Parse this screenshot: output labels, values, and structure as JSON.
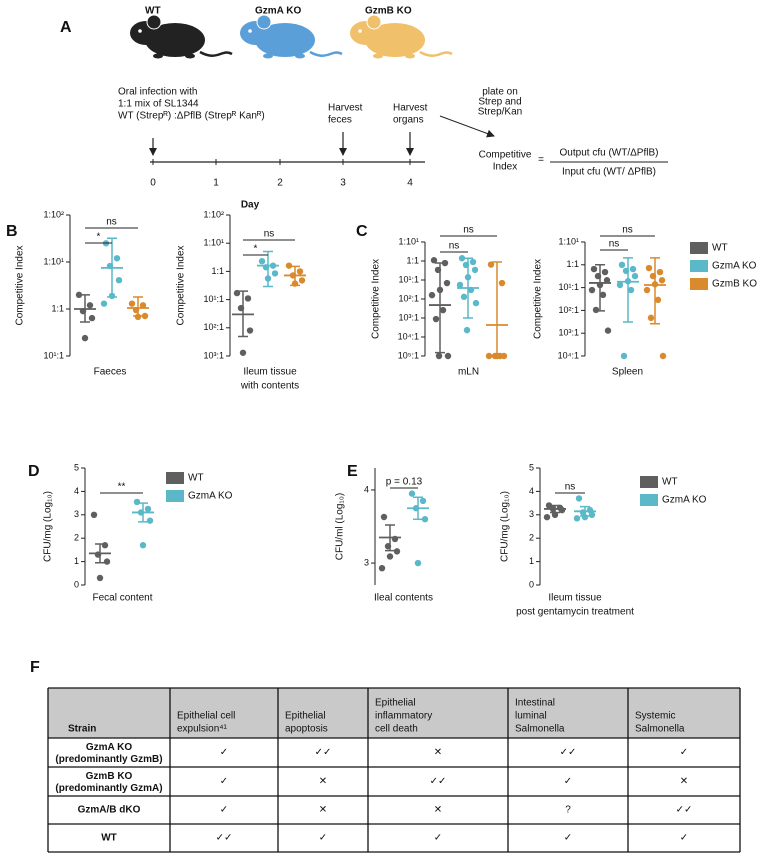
{
  "panel_labels": [
    "A",
    "B",
    "C",
    "D",
    "E",
    "F"
  ],
  "panel_a": {
    "mice": [
      {
        "label": "WT",
        "color": "#222222"
      },
      {
        "label": "GzmA KO",
        "color": "#5a9fd8"
      },
      {
        "label": "GzmB KO",
        "color": "#f0c06a"
      }
    ],
    "infection_text": [
      "Oral infection with",
      "1:1 mix of SL1344",
      "WT (Strepᴿ) :ΔPflB (Strepᴿ Kanᴿ)"
    ],
    "harvest_feces": [
      "Harvest",
      "feces"
    ],
    "harvest_organs": [
      "Harvest",
      "organs"
    ],
    "plate_text": [
      "plate on",
      "Strep and",
      "Strep/Kan"
    ],
    "days": [
      0,
      1,
      2,
      3,
      4
    ],
    "day_label": "Day",
    "formula": {
      "lhs": [
        "Competitive",
        "Index"
      ],
      "eq": "=",
      "numerator": "Output cfu (WT/ΔPflB)",
      "denominator": "Input cfu (WT/ ΔPflB)"
    }
  },
  "chart_data": [
    {
      "type": "scatter",
      "log_y": true,
      "ylabel": "Competitive Index",
      "xlabel": [
        "Faeces"
      ],
      "ylim": [
        0.1,
        100
      ],
      "yticks": [
        {
          "value": 100,
          "label": "1:10²"
        },
        {
          "value": 10,
          "label": "1:10¹"
        },
        {
          "value": 1,
          "label": "1:1"
        },
        {
          "value": 0.1,
          "label": "10¹:1"
        }
      ],
      "series": [
        {
          "color": "#5f5f5f",
          "values": [
            2,
            1.2,
            0.9,
            0.64,
            0.24
          ],
          "mean": 1,
          "range": [
            0.53,
            2
          ]
        },
        {
          "color": "#5bb8c9",
          "values": [
            25,
            12,
            8.2,
            4.1,
            1.9,
            1.3
          ],
          "mean": 7.5,
          "range": [
            1.8,
            32
          ]
        },
        {
          "color": "#d98a2c",
          "values": [
            1.3,
            1.2,
            0.95,
            0.71,
            0.68
          ],
          "mean": 1.05,
          "range": [
            0.71,
            1.8
          ]
        }
      ],
      "annotations": [
        {
          "text": "ns",
          "compare": [
            0,
            2
          ]
        },
        {
          "text": "*",
          "compare": [
            0,
            1
          ]
        }
      ]
    },
    {
      "type": "scatter",
      "log_y": true,
      "ylabel": "Competitive Index",
      "xlabel": [
        "Ileum tissue",
        "with contents"
      ],
      "ylim": [
        0.001,
        100
      ],
      "yticks": [
        {
          "value": 100,
          "label": "1:10²"
        },
        {
          "value": 10,
          "label": "1:10¹"
        },
        {
          "value": 1,
          "label": "1:1"
        },
        {
          "value": 0.1,
          "label": "10¹:1"
        },
        {
          "value": 0.01,
          "label": "10²:1"
        },
        {
          "value": 0.001,
          "label": "10³:1"
        }
      ],
      "series": [
        {
          "color": "#5f5f5f",
          "values": [
            0.17,
            0.11,
            0.05,
            0.008,
            0.0013
          ],
          "mean": 0.03,
          "range": [
            0.0049,
            0.2
          ]
        },
        {
          "color": "#5bb8c9",
          "values": [
            2.3,
            1.6,
            1.4,
            0.85,
            0.56
          ],
          "mean": 1.6,
          "range": [
            0.29,
            5.1
          ]
        },
        {
          "color": "#d98a2c",
          "values": [
            1.6,
            1,
            0.72,
            0.48,
            0.37
          ],
          "mean": 0.72,
          "range": [
            0.32,
            1.5
          ]
        }
      ],
      "annotations": [
        {
          "text": "ns",
          "compare": [
            0,
            2
          ]
        },
        {
          "text": "*",
          "compare": [
            0,
            1
          ]
        }
      ]
    },
    {
      "type": "scatter",
      "log_y": true,
      "ylabel": "Competitive Index",
      "xlabel": [
        "mLN"
      ],
      "ylim": [
        1e-05,
        10
      ],
      "yticks": [
        {
          "value": 10,
          "label": "1:10¹"
        },
        {
          "value": 1,
          "label": "1:1"
        },
        {
          "value": 0.1,
          "label": "10¹:1"
        },
        {
          "value": 0.01,
          "label": "10²:1"
        },
        {
          "value": 0.001,
          "label": "10³:1"
        },
        {
          "value": 0.0001,
          "label": "10⁴:1"
        },
        {
          "value": 1e-05,
          "label": "10⁵:1"
        }
      ],
      "series": [
        {
          "color": "#5f5f5f",
          "values": [
            1.1,
            0.78,
            0.34,
            0.069,
            0.03,
            0.016,
            0.0026,
            0.00088,
            1e-05,
            1e-05
          ],
          "mean": 0.0048,
          "range": [
            1.5e-05,
            0.78
          ]
        },
        {
          "color": "#5bb8c9",
          "values": [
            1.4,
            0.89,
            0.62,
            0.34,
            0.14,
            0.055,
            0.03,
            0.013,
            0.0061,
            0.00023
          ],
          "mean": 0.038,
          "range": [
            0.001,
            1.4
          ]
        },
        {
          "color": "#d98a2c",
          "values": [
            0.65,
            0.069,
            1e-05,
            1e-05,
            1e-05,
            1e-05,
            1e-05
          ],
          "mean": 0.00043,
          "range": [
            1e-05,
            0.89
          ]
        }
      ],
      "annotations": [
        {
          "text": "ns",
          "compare": [
            0,
            2
          ]
        },
        {
          "text": "ns",
          "compare": [
            0,
            1
          ]
        }
      ]
    },
    {
      "type": "scatter",
      "log_y": true,
      "ylabel": "Competitive Index",
      "xlabel": [
        "Spleen"
      ],
      "ylim": [
        0.0001,
        10
      ],
      "yticks": [
        {
          "value": 10,
          "label": "1:10¹"
        },
        {
          "value": 1,
          "label": "1:1"
        },
        {
          "value": 0.1,
          "label": "10¹:1"
        },
        {
          "value": 0.01,
          "label": "10²:1"
        },
        {
          "value": 0.001,
          "label": "10³:1"
        },
        {
          "value": 0.0001,
          "label": "10⁴:1"
        }
      ],
      "series": [
        {
          "name": "WT",
          "color": "#5f5f5f",
          "values": [
            0.65,
            0.48,
            0.32,
            0.21,
            0.13,
            0.078,
            0.048,
            0.0105,
            0.0013
          ],
          "mean": 0.16,
          "range": [
            0.0095,
            1
          ]
        },
        {
          "name": "GzmA KO",
          "color": "#5bb8c9",
          "values": [
            1,
            0.65,
            0.54,
            0.32,
            0.19,
            0.13,
            0.078,
            0.0001
          ],
          "mean": 0.18,
          "range": [
            0.0031,
            2
          ]
        },
        {
          "name": "GzmB KO",
          "color": "#d98a2c",
          "values": [
            0.72,
            0.48,
            0.32,
            0.21,
            0.14,
            0.078,
            0.029,
            0.0047,
            0.0001
          ],
          "mean": 0.13,
          "range": [
            0.0026,
            2
          ]
        }
      ],
      "annotations": [
        {
          "text": "ns",
          "compare": [
            0,
            2
          ]
        },
        {
          "text": "ns",
          "compare": [
            0,
            1
          ]
        }
      ]
    },
    {
      "type": "scatter",
      "log_y": false,
      "ylabel": "CFU/mg (Log₁₀)",
      "xlabel": [
        "Fecal content"
      ],
      "ylim": [
        0,
        5
      ],
      "yticks": [
        0,
        1,
        2,
        3,
        4,
        5
      ],
      "series": [
        {
          "name": "WT",
          "color": "#5f5f5f",
          "values": [
            3,
            1.7,
            1.3,
            1,
            0.3
          ],
          "mean": 1.35,
          "range": [
            0.95,
            1.75
          ]
        },
        {
          "name": "GzmA KO",
          "color": "#5bb8c9",
          "values": [
            3.55,
            3.25,
            3.1,
            2.75,
            1.7
          ],
          "mean": 3.1,
          "range": [
            2.7,
            3.5
          ]
        }
      ],
      "annotations": [
        {
          "text": "**",
          "compare": [
            0,
            1
          ]
        }
      ]
    },
    {
      "type": "scatter",
      "log_y": false,
      "ylabel": "CFU/ml (Log₁₀)",
      "xlabel": [
        "Ileal contents"
      ],
      "ylim": [
        2.7,
        4.3
      ],
      "yticks": [
        3,
        4
      ],
      "series": [
        {
          "color": "#5f5f5f",
          "values": [
            3.63,
            3.33,
            3.23,
            3.16,
            3.09,
            2.93
          ],
          "mean": 3.35,
          "range": [
            3.17,
            3.52
          ]
        },
        {
          "color": "#5bb8c9",
          "values": [
            3.95,
            3.85,
            3.75,
            3.6,
            3.0
          ],
          "mean": 3.75,
          "range": [
            3.6,
            3.9
          ]
        }
      ],
      "annotations": [
        {
          "text": "p = 0.13",
          "compare": [
            0,
            1
          ]
        }
      ]
    },
    {
      "type": "scatter",
      "log_y": false,
      "ylabel": "CFU/mg (Log₁₀)",
      "xlabel": [
        "Ileum tissue",
        "post gentamycin treatment"
      ],
      "ylim": [
        0,
        5
      ],
      "yticks": [
        0,
        1,
        2,
        3,
        4,
        5
      ],
      "series": [
        {
          "name": "WT",
          "color": "#5f5f5f",
          "values": [
            3.4,
            3.3,
            3.25,
            3.2,
            3.0,
            2.9
          ],
          "mean": 3.25,
          "range": [
            3.1,
            3.4
          ]
        },
        {
          "name": "GzmA KO",
          "color": "#5bb8c9",
          "values": [
            3.7,
            3.2,
            3.1,
            3.0,
            2.9,
            2.85
          ],
          "mean": 3.15,
          "range": [
            2.95,
            3.35
          ]
        }
      ],
      "annotations": [
        {
          "text": "ns",
          "compare": [
            0,
            1
          ]
        }
      ]
    }
  ],
  "table": {
    "header": [
      [
        "Strain"
      ],
      [
        "Epithelial cell",
        "expulsion⁴¹"
      ],
      [
        "Epithelial",
        "apoptosis"
      ],
      [
        "Epithelial",
        "inflammatory",
        "cell death"
      ],
      [
        "Intestinal",
        "luminal",
        "Salmonella"
      ],
      [
        "Systemic",
        "Salmonella"
      ]
    ],
    "rows": [
      {
        "strain": "GzmA KO",
        "note": "(predominantly GzmB)",
        "color": "#3b7cc4",
        "cells": [
          "✓",
          "✓✓",
          "✕",
          "✓✓",
          "✓"
        ]
      },
      {
        "strain": "GzmB KO",
        "note": "(predominantly GzmA)",
        "color": "#e08a2a",
        "cells": [
          "✓",
          "✕",
          "✓✓",
          "✓",
          "✕"
        ]
      },
      {
        "strain": "GzmA/B dKO",
        "color": "#3fc7b2",
        "cells": [
          "✓",
          "✕",
          "✕",
          "?",
          "✓✓"
        ]
      },
      {
        "strain": "WT",
        "color": "#111111",
        "cells": [
          "✓✓",
          "✓",
          "✓",
          "✓",
          "✓"
        ]
      }
    ]
  }
}
